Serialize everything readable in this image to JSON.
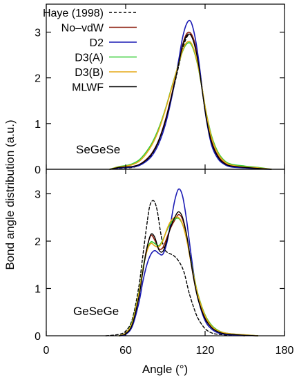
{
  "chart_data": [
    {
      "type": "line",
      "panel": "top",
      "annotation": "SeGeSe",
      "xlim": [
        0,
        180
      ],
      "ylim": [
        0,
        3.5
      ],
      "x_ticks": [
        0,
        60,
        120,
        180
      ],
      "y_ticks": [
        0,
        1,
        2,
        3
      ],
      "y_tick_labels": [
        "0",
        "1",
        "2",
        "3"
      ],
      "legend_position": "top-left",
      "grid": false,
      "series": [
        {
          "name": "Haye (1998)",
          "color": "#000000",
          "dashed": true,
          "width": 1.4,
          "x": [
            48,
            55,
            60,
            65,
            70,
            75,
            80,
            85,
            90,
            95,
            100,
            103,
            106,
            109,
            112,
            115,
            118,
            121,
            125,
            130,
            135,
            140,
            150,
            160,
            170
          ],
          "y": [
            0,
            0.02,
            0.03,
            0.04,
            0.08,
            0.17,
            0.33,
            0.62,
            1.05,
            1.62,
            2.25,
            2.62,
            2.88,
            2.95,
            2.75,
            2.35,
            1.72,
            1.1,
            0.58,
            0.25,
            0.11,
            0.06,
            0.03,
            0.02,
            0
          ]
        },
        {
          "name": "No–vdW",
          "color": "#8b1a0a",
          "dashed": false,
          "width": 1.6,
          "x": [
            48,
            55,
            60,
            65,
            70,
            75,
            80,
            85,
            90,
            95,
            100,
            103,
            106,
            109,
            112,
            115,
            118,
            121,
            125,
            130,
            135,
            140,
            150,
            160,
            170
          ],
          "y": [
            0,
            0.05,
            0.05,
            0.06,
            0.1,
            0.2,
            0.36,
            0.64,
            1.08,
            1.66,
            2.32,
            2.72,
            2.96,
            2.98,
            2.78,
            2.36,
            1.72,
            1.12,
            0.6,
            0.28,
            0.13,
            0.07,
            0.04,
            0.02,
            0
          ]
        },
        {
          "name": "D2",
          "color": "#1a1ab4",
          "dashed": false,
          "width": 1.6,
          "x": [
            48,
            55,
            60,
            65,
            70,
            75,
            80,
            85,
            90,
            95,
            100,
            103,
            106,
            109,
            112,
            115,
            118,
            121,
            125,
            130,
            135,
            140,
            150,
            160,
            170
          ],
          "y": [
            0,
            0.03,
            0.04,
            0.05,
            0.08,
            0.16,
            0.3,
            0.56,
            0.98,
            1.6,
            2.38,
            2.88,
            3.18,
            3.24,
            2.95,
            2.42,
            1.72,
            1.08,
            0.52,
            0.22,
            0.1,
            0.05,
            0.03,
            0.01,
            0
          ]
        },
        {
          "name": "D3(A)",
          "color": "#33cc33",
          "dashed": false,
          "width": 1.6,
          "x": [
            48,
            55,
            60,
            65,
            70,
            75,
            80,
            85,
            90,
            95,
            100,
            103,
            106,
            109,
            112,
            115,
            118,
            121,
            125,
            130,
            135,
            140,
            150,
            160,
            170
          ],
          "y": [
            0,
            0.06,
            0.08,
            0.12,
            0.2,
            0.36,
            0.58,
            0.9,
            1.32,
            1.82,
            2.3,
            2.58,
            2.74,
            2.75,
            2.55,
            2.2,
            1.72,
            1.22,
            0.72,
            0.36,
            0.18,
            0.11,
            0.07,
            0.04,
            0
          ]
        },
        {
          "name": "D3(B)",
          "color": "#e6a817",
          "dashed": false,
          "width": 1.6,
          "x": [
            48,
            55,
            60,
            65,
            70,
            75,
            80,
            85,
            90,
            95,
            100,
            103,
            106,
            109,
            112,
            115,
            118,
            121,
            125,
            130,
            135,
            140,
            150,
            160,
            170
          ],
          "y": [
            0,
            0.05,
            0.07,
            0.1,
            0.17,
            0.32,
            0.54,
            0.86,
            1.3,
            1.8,
            2.3,
            2.6,
            2.77,
            2.78,
            2.58,
            2.22,
            1.72,
            1.2,
            0.68,
            0.33,
            0.16,
            0.09,
            0.05,
            0.03,
            0
          ]
        },
        {
          "name": "MLWF",
          "color": "#000000",
          "dashed": false,
          "width": 1.4,
          "x": [
            48,
            55,
            60,
            65,
            70,
            75,
            80,
            85,
            90,
            95,
            100,
            103,
            106,
            109,
            112,
            115,
            118,
            121,
            125,
            130,
            135,
            140,
            150,
            160,
            170
          ],
          "y": [
            0,
            0.04,
            0.05,
            0.06,
            0.1,
            0.19,
            0.35,
            0.63,
            1.06,
            1.64,
            2.3,
            2.7,
            2.92,
            2.94,
            2.72,
            2.3,
            1.68,
            1.1,
            0.58,
            0.26,
            0.12,
            0.07,
            0.04,
            0.02,
            0
          ]
        }
      ]
    },
    {
      "type": "line",
      "panel": "bottom",
      "annotation": "GeSeGe",
      "xlabel": "Angle (°)",
      "ylabel": "Bond angle distribution (a.u.)",
      "xlim": [
        0,
        180
      ],
      "ylim": [
        0,
        3.5
      ],
      "x_ticks": [
        0,
        60,
        120,
        180
      ],
      "y_ticks": [
        0,
        1,
        2,
        3
      ],
      "y_tick_labels": [
        "0",
        "1",
        "2",
        "3"
      ],
      "grid": false,
      "series": [
        {
          "name": "Haye (1998)",
          "color": "#000000",
          "dashed": true,
          "width": 1.4,
          "x": [
            45,
            55,
            60,
            65,
            70,
            73,
            76,
            78,
            80,
            82,
            84,
            86,
            88,
            90,
            93,
            96,
            100,
            104,
            108,
            112,
            115,
            120,
            125,
            130,
            140,
            150
          ],
          "y": [
            0,
            0.03,
            0.1,
            0.35,
            1.05,
            1.7,
            2.35,
            2.72,
            2.85,
            2.82,
            2.62,
            2.25,
            1.95,
            1.8,
            1.74,
            1.7,
            1.58,
            1.35,
            0.9,
            0.55,
            0.35,
            0.15,
            0.06,
            0.03,
            0.01,
            0
          ]
        },
        {
          "name": "No–vdW",
          "color": "#8b1a0a",
          "dashed": false,
          "width": 1.6,
          "x": [
            55,
            60,
            65,
            70,
            73,
            76,
            79,
            82,
            85,
            88,
            91,
            94,
            97,
            100,
            103,
            106,
            109,
            112,
            115,
            120,
            125,
            130,
            135,
            140,
            150,
            160
          ],
          "y": [
            0,
            0.05,
            0.25,
            0.85,
            1.4,
            1.85,
            2.12,
            2.02,
            1.84,
            1.86,
            2.06,
            2.28,
            2.44,
            2.56,
            2.46,
            2.12,
            1.6,
            1.12,
            0.76,
            0.38,
            0.18,
            0.09,
            0.05,
            0.03,
            0.01,
            0
          ]
        },
        {
          "name": "D2",
          "color": "#1a1ab4",
          "dashed": false,
          "width": 1.6,
          "x": [
            55,
            60,
            65,
            70,
            73,
            76,
            79,
            82,
            85,
            88,
            91,
            94,
            97,
            100,
            103,
            106,
            109,
            112,
            115,
            120,
            125,
            130,
            135,
            140,
            150,
            160
          ],
          "y": [
            0,
            0.03,
            0.2,
            0.7,
            1.15,
            1.5,
            1.72,
            1.8,
            1.74,
            1.72,
            1.95,
            2.38,
            2.85,
            3.1,
            2.95,
            2.45,
            1.8,
            1.2,
            0.75,
            0.32,
            0.14,
            0.06,
            0.03,
            0.02,
            0.01,
            0
          ]
        },
        {
          "name": "D3(A)",
          "color": "#33cc33",
          "dashed": false,
          "width": 1.6,
          "x": [
            55,
            60,
            65,
            70,
            73,
            76,
            79,
            82,
            85,
            88,
            91,
            94,
            97,
            100,
            103,
            106,
            109,
            112,
            115,
            120,
            125,
            130,
            135,
            140,
            150,
            160
          ],
          "y": [
            0,
            0.06,
            0.3,
            0.92,
            1.42,
            1.8,
            1.98,
            1.95,
            1.9,
            2.02,
            2.22,
            2.38,
            2.46,
            2.48,
            2.35,
            2.05,
            1.62,
            1.2,
            0.84,
            0.44,
            0.22,
            0.11,
            0.06,
            0.04,
            0.02,
            0
          ]
        },
        {
          "name": "D3(B)",
          "color": "#e6a817",
          "dashed": false,
          "width": 1.6,
          "x": [
            55,
            60,
            65,
            70,
            73,
            76,
            79,
            82,
            85,
            88,
            91,
            94,
            97,
            100,
            103,
            106,
            109,
            112,
            115,
            120,
            125,
            130,
            135,
            140,
            150,
            160
          ],
          "y": [
            0,
            0.06,
            0.28,
            0.9,
            1.4,
            1.78,
            1.95,
            1.9,
            1.88,
            2.0,
            2.24,
            2.42,
            2.5,
            2.5,
            2.36,
            2.04,
            1.6,
            1.18,
            0.82,
            0.42,
            0.2,
            0.1,
            0.06,
            0.04,
            0.02,
            0
          ]
        },
        {
          "name": "MLWF",
          "color": "#000000",
          "dashed": false,
          "width": 1.4,
          "x": [
            55,
            60,
            65,
            70,
            73,
            76,
            79,
            82,
            85,
            88,
            91,
            94,
            97,
            100,
            103,
            106,
            109,
            112,
            115,
            120,
            125,
            130,
            135,
            140,
            150,
            160
          ],
          "y": [
            0,
            0.04,
            0.24,
            0.82,
            1.36,
            1.84,
            2.14,
            2.08,
            1.82,
            1.78,
            2.0,
            2.3,
            2.5,
            2.62,
            2.5,
            2.14,
            1.62,
            1.12,
            0.74,
            0.36,
            0.17,
            0.08,
            0.04,
            0.03,
            0.01,
            0
          ]
        }
      ]
    }
  ]
}
